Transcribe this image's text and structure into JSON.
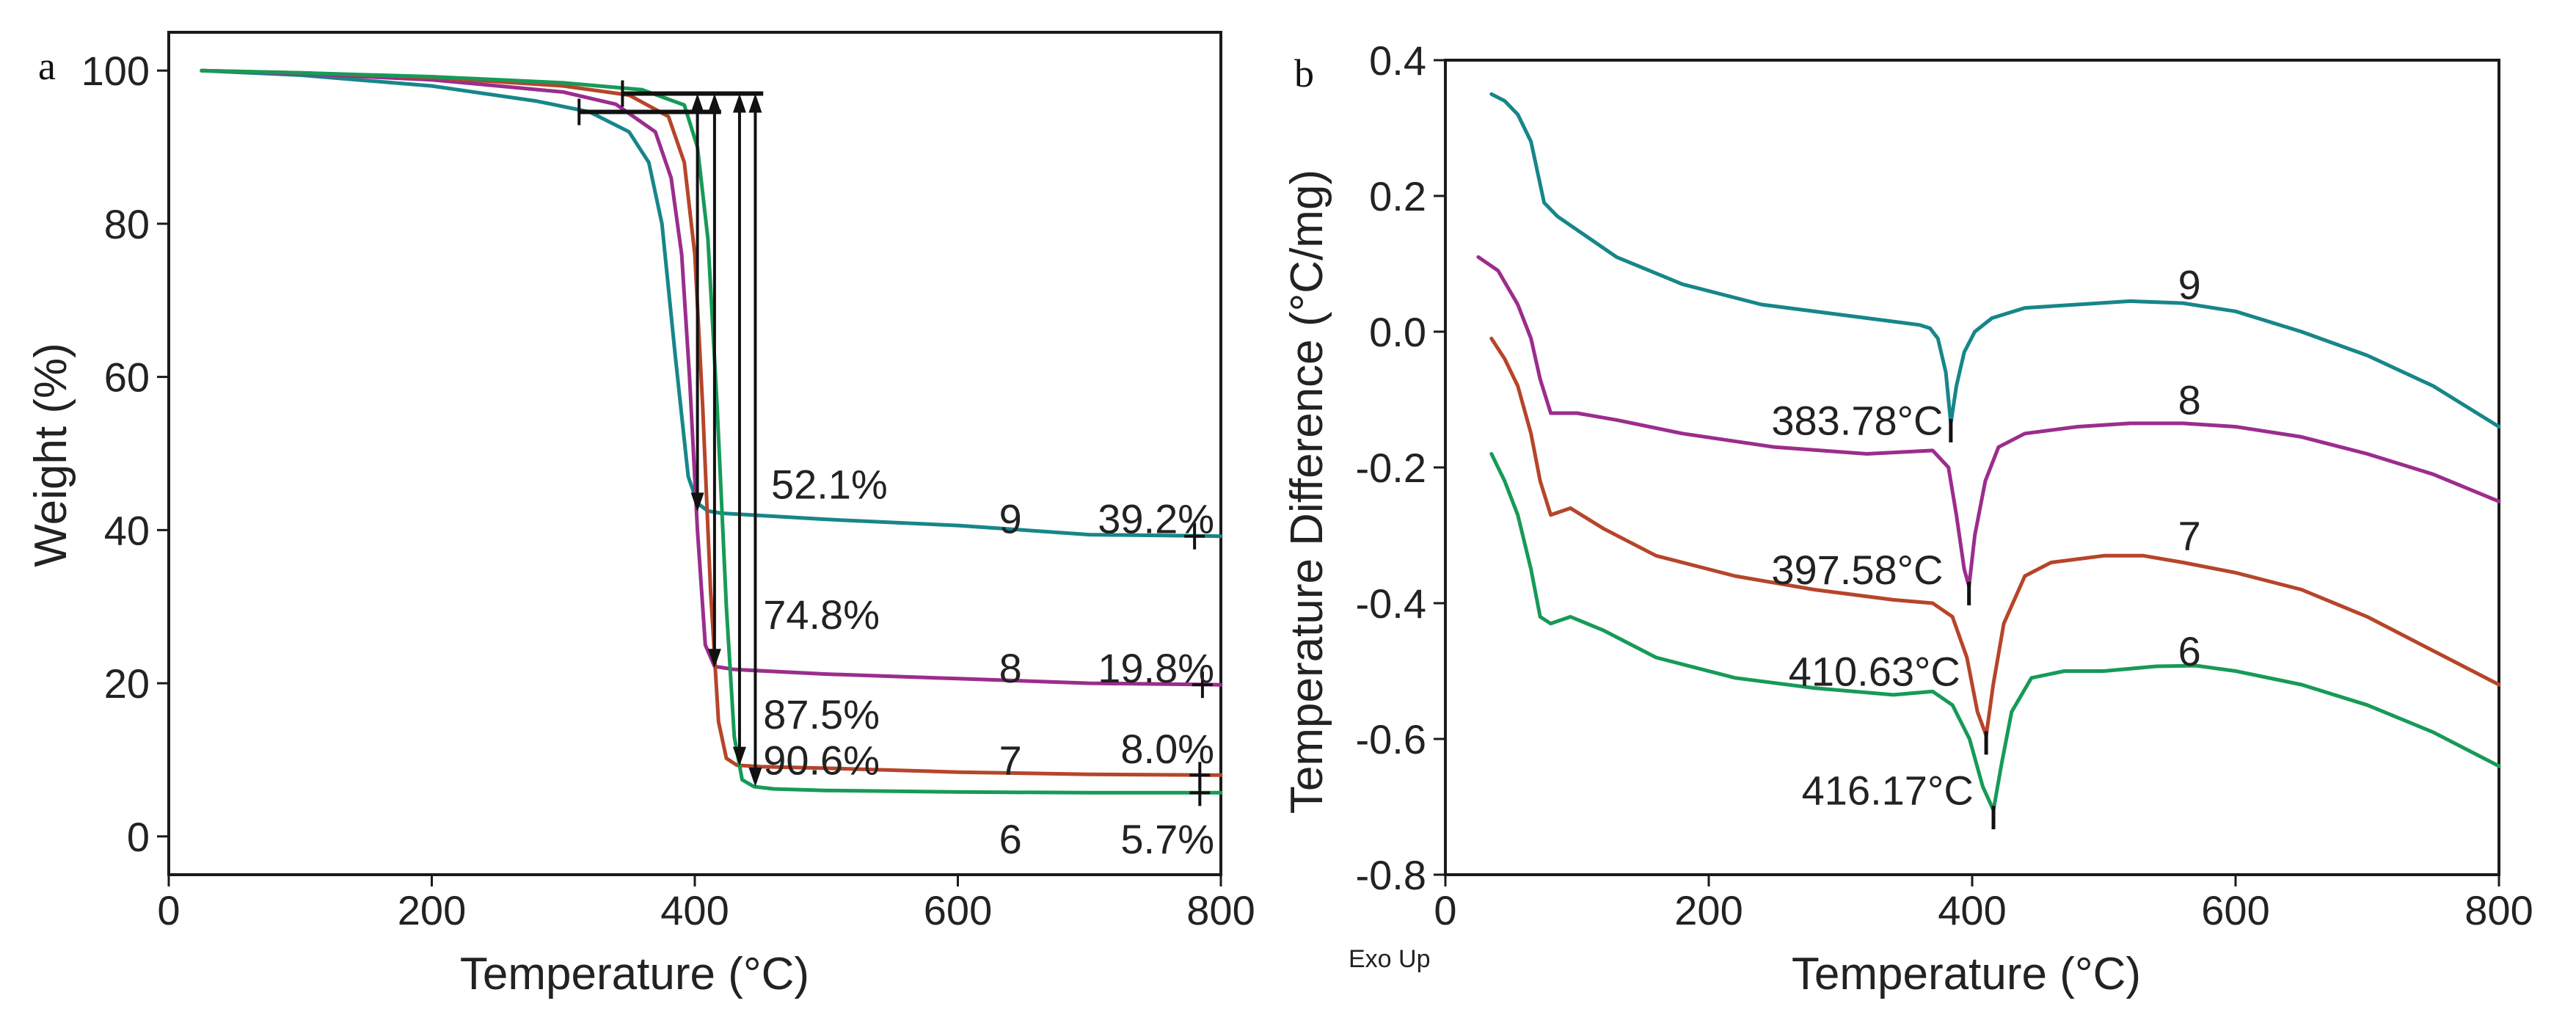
{
  "colors": {
    "s9": "#17868a",
    "s8": "#9b2d8c",
    "s7": "#b6452a",
    "s6": "#179a58",
    "axis": "#1a1a1a"
  },
  "chart_data": [
    {
      "panel": "a",
      "type": "line",
      "title": "",
      "xlabel": "Temperature (°C)",
      "ylabel": "Weight (%)",
      "xlim": [
        0,
        800
      ],
      "ylim": [
        -5,
        105
      ],
      "xticks": [
        0,
        200,
        400,
        600,
        800
      ],
      "yticks": [
        0,
        20,
        40,
        60,
        80,
        100
      ],
      "series": [
        {
          "name": "9",
          "color_key": "s9",
          "x": [
            25,
            100,
            200,
            280,
            320,
            350,
            365,
            375,
            385,
            395,
            402,
            410,
            420,
            450,
            500,
            600,
            700,
            800
          ],
          "y": [
            100,
            99.4,
            98,
            96,
            94.6,
            92,
            88,
            80,
            63,
            47,
            43.5,
            42.5,
            42.2,
            41.9,
            41.4,
            40.6,
            39.4,
            39.2
          ]
        },
        {
          "name": "8",
          "color_key": "s8",
          "x": [
            25,
            100,
            200,
            300,
            340,
            370,
            382,
            390,
            396,
            402,
            408,
            415,
            430,
            500,
            600,
            700,
            800
          ],
          "y": [
            100,
            99.6,
            98.8,
            97.2,
            95.6,
            92,
            86,
            76,
            60,
            40,
            25,
            22.2,
            21.8,
            21.2,
            20.6,
            20,
            19.8
          ]
        },
        {
          "name": "7",
          "color_key": "s7",
          "x": [
            25,
            100,
            200,
            300,
            350,
            380,
            392,
            400,
            406,
            412,
            418,
            424,
            432,
            450,
            500,
            600,
            700,
            800
          ],
          "y": [
            100,
            99.7,
            99.1,
            98,
            96.8,
            94,
            88,
            76,
            56,
            32,
            15,
            10.2,
            9.3,
            9.1,
            8.9,
            8.4,
            8.1,
            8.0
          ]
        },
        {
          "name": "6",
          "color_key": "s6",
          "x": [
            25,
            100,
            200,
            300,
            360,
            392,
            402,
            410,
            417,
            424,
            430,
            436,
            445,
            460,
            500,
            600,
            700,
            800
          ],
          "y": [
            100,
            99.7,
            99.2,
            98.4,
            97.5,
            95.5,
            90,
            78,
            56,
            30,
            13,
            7.4,
            6.5,
            6.2,
            6.0,
            5.8,
            5.7,
            5.7
          ]
        }
      ],
      "annotations": [
        {
          "text": "52.1%",
          "x": 458,
          "y": 46
        },
        {
          "text": "74.8%",
          "x": 452,
          "y": 29
        },
        {
          "text": "87.5%",
          "x": 452,
          "y": 16
        },
        {
          "text": "90.6%",
          "x": 452,
          "y": 10
        },
        {
          "text": "9",
          "x": 640,
          "y": 41.5,
          "anchor": "middle"
        },
        {
          "text": "39.2%",
          "x": 795,
          "y": 41.5,
          "anchor": "end"
        },
        {
          "text": "8",
          "x": 640,
          "y": 22,
          "anchor": "middle"
        },
        {
          "text": "19.8%",
          "x": 795,
          "y": 22,
          "anchor": "end"
        },
        {
          "text": "7",
          "x": 640,
          "y": 10,
          "anchor": "middle"
        },
        {
          "text": "8.0%",
          "x": 795,
          "y": 11.5,
          "anchor": "end"
        },
        {
          "text": "6",
          "x": 640,
          "y": -0.3,
          "anchor": "middle"
        },
        {
          "text": "5.7%",
          "x": 795,
          "y": -0.3,
          "anchor": "end"
        }
      ],
      "weight_loss_arrows": [
        {
          "series": "9",
          "x": 402,
          "y_top": 97,
          "y_bottom": 42.4
        },
        {
          "series": "8",
          "x": 415,
          "y_top": 97,
          "y_bottom": 22
        },
        {
          "series": "7",
          "x": 434,
          "y_top": 97,
          "y_bottom": 9.2
        },
        {
          "series": "6",
          "x": 446,
          "y_top": 97,
          "y_bottom": 6.5
        }
      ],
      "onset_lines": [
        {
          "y": 97,
          "x_from": 345,
          "x_to": 452
        },
        {
          "y": 94.6,
          "x_from": 312,
          "x_to": 420
        }
      ],
      "endpoint_markers": [
        {
          "series": "9",
          "x": 780,
          "y": 39.2
        },
        {
          "series": "8",
          "x": 786,
          "y": 19.8
        },
        {
          "series": "7",
          "x": 784,
          "y": 8.0
        },
        {
          "series": "6",
          "x": 784,
          "y": 5.7
        }
      ]
    },
    {
      "panel": "b",
      "type": "line",
      "title": "",
      "xlabel": "Temperature (°C)",
      "ylabel": "Temperature Difference (°C/mg)",
      "xlim": [
        0,
        800
      ],
      "ylim": [
        -0.8,
        0.4
      ],
      "xticks": [
        0,
        200,
        400,
        600,
        800
      ],
      "yticks": [
        -0.8,
        -0.6,
        -0.4,
        -0.2,
        0.0,
        0.2,
        0.4
      ],
      "corner_note": "Exo Up",
      "series": [
        {
          "name": "9",
          "color_key": "s9",
          "x": [
            35,
            45,
            55,
            65,
            75,
            85,
            100,
            130,
            180,
            240,
            300,
            340,
            360,
            368,
            374,
            380,
            383.78,
            388,
            394,
            402,
            415,
            440,
            480,
            520,
            560,
            600,
            650,
            700,
            750,
            800
          ],
          "y": [
            0.35,
            0.34,
            0.32,
            0.28,
            0.19,
            0.17,
            0.15,
            0.11,
            0.07,
            0.04,
            0.025,
            0.015,
            0.01,
            0.005,
            -0.01,
            -0.06,
            -0.135,
            -0.08,
            -0.03,
            0.0,
            0.02,
            0.035,
            0.04,
            0.045,
            0.042,
            0.03,
            0.0,
            -0.035,
            -0.08,
            -0.14
          ]
        },
        {
          "name": "8",
          "color_key": "s8",
          "x": [
            25,
            40,
            55,
            65,
            72,
            80,
            90,
            100,
            130,
            180,
            250,
            320,
            370,
            382,
            388,
            394,
            397.58,
            402,
            410,
            420,
            440,
            480,
            520,
            560,
            600,
            650,
            700,
            750,
            800
          ],
          "y": [
            0.11,
            0.09,
            0.04,
            -0.01,
            -0.07,
            -0.12,
            -0.12,
            -0.12,
            -0.13,
            -0.15,
            -0.17,
            -0.18,
            -0.175,
            -0.2,
            -0.27,
            -0.35,
            -0.375,
            -0.3,
            -0.22,
            -0.17,
            -0.15,
            -0.14,
            -0.135,
            -0.135,
            -0.14,
            -0.155,
            -0.18,
            -0.21,
            -0.25
          ]
        },
        {
          "name": "7",
          "color_key": "s7",
          "x": [
            35,
            45,
            55,
            65,
            72,
            80,
            95,
            120,
            160,
            220,
            280,
            340,
            370,
            385,
            396,
            404,
            410.63,
            416,
            424,
            440,
            460,
            500,
            530,
            560,
            600,
            650,
            700,
            750,
            800
          ],
          "y": [
            -0.01,
            -0.04,
            -0.08,
            -0.15,
            -0.22,
            -0.27,
            -0.26,
            -0.29,
            -0.33,
            -0.36,
            -0.38,
            -0.395,
            -0.4,
            -0.42,
            -0.48,
            -0.56,
            -0.595,
            -0.52,
            -0.43,
            -0.36,
            -0.34,
            -0.33,
            -0.33,
            -0.34,
            -0.355,
            -0.38,
            -0.42,
            -0.47,
            -0.52
          ]
        },
        {
          "name": "6",
          "color_key": "s6",
          "x": [
            35,
            45,
            55,
            65,
            72,
            80,
            95,
            120,
            160,
            220,
            280,
            340,
            370,
            385,
            398,
            408,
            416.17,
            422,
            430,
            445,
            470,
            500,
            540,
            570,
            600,
            650,
            700,
            750,
            800
          ],
          "y": [
            -0.18,
            -0.22,
            -0.27,
            -0.35,
            -0.42,
            -0.43,
            -0.42,
            -0.44,
            -0.48,
            -0.51,
            -0.525,
            -0.535,
            -0.53,
            -0.55,
            -0.6,
            -0.67,
            -0.705,
            -0.64,
            -0.56,
            -0.51,
            -0.5,
            -0.5,
            -0.493,
            -0.492,
            -0.5,
            -0.52,
            -0.55,
            -0.59,
            -0.64
          ]
        }
      ],
      "annotations": [
        {
          "text": "9",
          "x": 565,
          "y": 0.07,
          "anchor": "middle"
        },
        {
          "text": "8",
          "x": 565,
          "y": -0.1,
          "anchor": "middle"
        },
        {
          "text": "7",
          "x": 565,
          "y": -0.3,
          "anchor": "middle"
        },
        {
          "text": "6",
          "x": 565,
          "y": -0.47,
          "anchor": "middle"
        },
        {
          "text": "383.78°C",
          "x": 378,
          "y": -0.13,
          "anchor": "end"
        },
        {
          "text": "397.58°C",
          "x": 378,
          "y": -0.35,
          "anchor": "end"
        },
        {
          "text": "410.63°C",
          "x": 391,
          "y": -0.5,
          "anchor": "end"
        },
        {
          "text": "416.17°C",
          "x": 401,
          "y": -0.675,
          "anchor": "end"
        }
      ],
      "peak_markers": [
        {
          "series": "9",
          "x": 383.78,
          "y": -0.135
        },
        {
          "series": "8",
          "x": 397.58,
          "y": -0.375
        },
        {
          "series": "7",
          "x": 410.63,
          "y": -0.595
        },
        {
          "series": "6",
          "x": 416.17,
          "y": -0.705
        }
      ]
    }
  ]
}
